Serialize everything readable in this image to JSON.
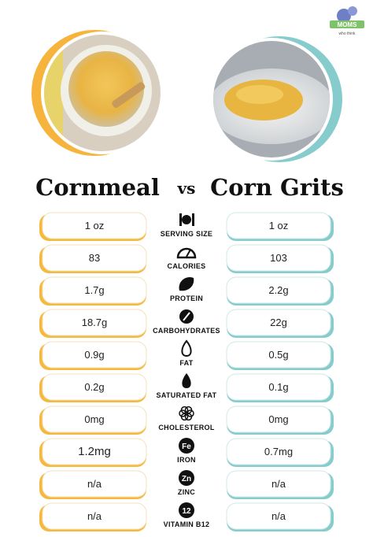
{
  "logo": {
    "brand": "MOMS",
    "tagline": "who think"
  },
  "header": {
    "left": "Cornmeal",
    "vs": "vs",
    "right": "Corn Grits"
  },
  "rows": [
    {
      "label": "SERVING SIZE",
      "left": "1 oz",
      "right": "1 oz"
    },
    {
      "label": "CALORIES",
      "left": "83",
      "right": "103"
    },
    {
      "label": "PROTEIN",
      "left": "1.7g",
      "right": "2.2g"
    },
    {
      "label": "CARBOHYDRATES",
      "left": "18.7g",
      "right": "22g"
    },
    {
      "label": "FAT",
      "left": "0.9g",
      "right": "0.5g"
    },
    {
      "label": "SATURATED FAT",
      "left": "0.2g",
      "right": "0.1g"
    },
    {
      "label": "CHOLESTEROL",
      "left": "0mg",
      "right": "0mg"
    },
    {
      "label": "IRON",
      "icon": "Fe",
      "left": "1.2mg",
      "right": "0.7mg"
    },
    {
      "label": "ZINC",
      "icon": "Zn",
      "left": "n/a",
      "right": "n/a"
    },
    {
      "label": "VITAMIN B12",
      "icon": "12",
      "left": "n/a",
      "right": "n/a"
    }
  ]
}
